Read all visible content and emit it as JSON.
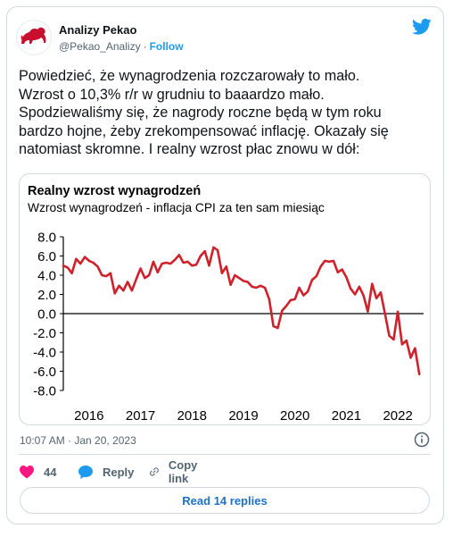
{
  "author": {
    "name": "Analizy Pekao",
    "handle": "@Pekao_Analizy",
    "separator": "·",
    "follow_label": "Follow"
  },
  "tweet": {
    "text": "Powiedzieć, że wynagrodzenia rozczarowały to mało.\nWzrost o 10,3% r/r w grudniu to baaardzo mało.\nSpodziewaliśmy się, że nagrody roczne będą w tym roku\nbardzo hojne, żeby zrekompensować inflację. Okazały się\nnatomiast skromne. I realny wzrost płac znowu w dół:",
    "timestamp": "10:07 AM · Jan 20, 2023"
  },
  "actions": {
    "likes_count": "44",
    "reply_label": "Reply",
    "copy_link_label": "Copy link",
    "read_replies_label": "Read 14 replies"
  },
  "colors": {
    "like": "#f91880",
    "reply": "#1d9bf0",
    "brand": "#1d9bf0",
    "logo": "#c8102e",
    "series": "#d0202a"
  },
  "icons": {
    "logo": "pekao-bison-logo-icon",
    "bird": "twitter-bird-icon",
    "info": "info-icon",
    "like": "heart-icon",
    "reply": "speech-bubble-icon",
    "copy": "link-icon"
  },
  "chart_data": {
    "type": "line",
    "title": "Realny wzrost wynagrodzeń",
    "subtitle": "Wzrost wynagrodzeń - inflacja CPI za ten sam miesiąc",
    "ylim": [
      -8,
      8
    ],
    "yticks": [
      8,
      6,
      4,
      2,
      0,
      -2,
      -4,
      -6,
      -8
    ],
    "ytick_labels": [
      "8.0",
      "6.0",
      "4.0",
      "2.0",
      "0.0",
      "-2.0",
      "-4.0",
      "-6.0",
      "-8.0"
    ],
    "xlim": [
      2016,
      2023
    ],
    "xticks": [
      2016,
      2017,
      2018,
      2019,
      2020,
      2021,
      2022
    ],
    "xtick_labels": [
      "2016",
      "2017",
      "2018",
      "2019",
      "2020",
      "2021",
      "2022"
    ],
    "grid": false,
    "legend": "none",
    "series": [
      {
        "x": [
          2016.0,
          2016.083,
          2016.167,
          2016.25,
          2016.333,
          2016.417,
          2016.5,
          2016.583,
          2016.667,
          2016.75,
          2016.833,
          2016.917,
          2017.0,
          2017.083,
          2017.167,
          2017.25,
          2017.333,
          2017.417,
          2017.5,
          2017.583,
          2017.667,
          2017.75,
          2017.833,
          2017.917,
          2018.0,
          2018.083,
          2018.167,
          2018.25,
          2018.333,
          2018.417,
          2018.5,
          2018.583,
          2018.667,
          2018.75,
          2018.833,
          2018.917,
          2019.0,
          2019.083,
          2019.167,
          2019.25,
          2019.333,
          2019.417,
          2019.5,
          2019.583,
          2019.667,
          2019.75,
          2019.833,
          2019.917,
          2020.0,
          2020.083,
          2020.167,
          2020.25,
          2020.333,
          2020.417,
          2020.5,
          2020.583,
          2020.667,
          2020.75,
          2020.833,
          2020.917,
          2021.0,
          2021.083,
          2021.167,
          2021.25,
          2021.333,
          2021.417,
          2021.5,
          2021.583,
          2021.667,
          2021.75,
          2021.833,
          2021.917,
          2022.0,
          2022.083,
          2022.167,
          2022.25,
          2022.333,
          2022.417,
          2022.5,
          2022.583,
          2022.667,
          2022.75,
          2022.833,
          2022.917
        ],
        "y": [
          5.0,
          4.8,
          4.2,
          5.7,
          5.2,
          5.9,
          5.5,
          5.3,
          4.9,
          4.0,
          3.9,
          4.2,
          2.1,
          2.9,
          2.4,
          3.3,
          2.4,
          3.6,
          4.7,
          3.7,
          4.0,
          5.4,
          4.3,
          5.2,
          5.3,
          5.2,
          5.6,
          6.1,
          5.3,
          5.4,
          5.0,
          5.1,
          6.0,
          6.5,
          5.0,
          6.9,
          6.6,
          4.2,
          4.9,
          3.0,
          4.0,
          3.7,
          3.4,
          3.3,
          2.8,
          2.7,
          2.9,
          2.7,
          1.5,
          -1.3,
          -1.5,
          0.3,
          0.8,
          1.4,
          1.5,
          2.7,
          1.9,
          2.3,
          3.5,
          3.9,
          4.9,
          5.5,
          5.4,
          5.5,
          4.3,
          4.6,
          3.8,
          2.6,
          2.0,
          2.8,
          1.9,
          0.2,
          3.1,
          1.6,
          2.2,
          0.0,
          -2.3,
          -2.7,
          0.2,
          -3.2,
          -2.8,
          -4.6,
          -3.6,
          -6.3
        ]
      }
    ]
  }
}
